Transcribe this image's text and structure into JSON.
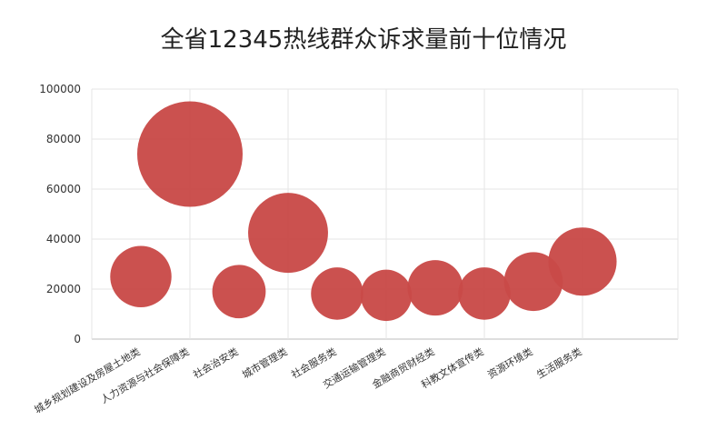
{
  "chart_data": {
    "type": "scatter",
    "title": "全省12345热线群众诉求量前十位情况",
    "xlabel": "",
    "ylabel": "",
    "ylim": [
      0,
      100000
    ],
    "yticks": [
      0,
      20000,
      40000,
      60000,
      80000,
      100000
    ],
    "grid": true,
    "legend": "none",
    "bubble_color": "#c94a48",
    "categories": [
      "城乡规划建设及房屋土地类",
      "人力资源与社会保障类",
      "社会治安类",
      "城市管理类",
      "社会服务类",
      "交通运输管理类",
      "金融商贸财经类",
      "科教文体宣传类",
      "资源环境类",
      "生活服务类"
    ],
    "values": [
      25000,
      74000,
      19000,
      42500,
      18200,
      17500,
      20500,
      18200,
      23000,
      31000
    ]
  }
}
